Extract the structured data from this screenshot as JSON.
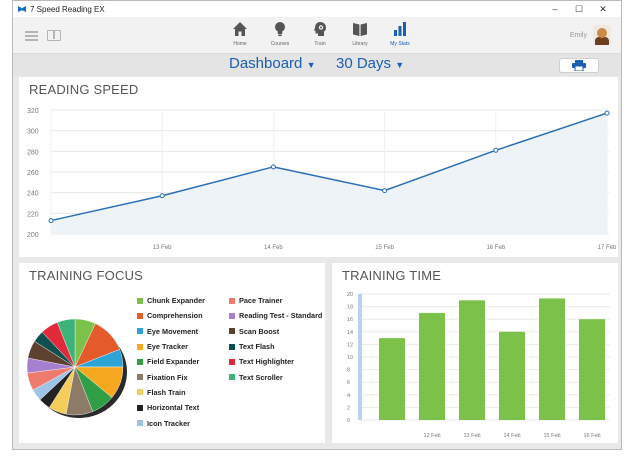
{
  "window": {
    "title": "7 Speed Reading EX",
    "controls": [
      "–",
      "☐",
      "✕"
    ]
  },
  "nav": {
    "items": [
      {
        "label": "Home",
        "icon": "home-icon",
        "active": false
      },
      {
        "label": "Courses",
        "icon": "lightbulb-icon",
        "active": false
      },
      {
        "label": "Train",
        "icon": "brain-icon",
        "active": false
      },
      {
        "label": "Library",
        "icon": "book-icon",
        "active": false
      },
      {
        "label": "My Stats",
        "icon": "bar-chart-icon",
        "active": true
      }
    ]
  },
  "user": {
    "name": "Emily"
  },
  "filters": {
    "view": "Dashboard",
    "period": "30 Days"
  },
  "colors": {
    "accent": "#1a5fb4",
    "line": "#2a6eb5",
    "bar": "#7cc24a"
  },
  "reading_speed": {
    "title": "READING SPEED",
    "chart_data": {
      "type": "line",
      "x": [
        "",
        "13 Feb",
        "14 Feb",
        "15 Feb",
        "16 Feb",
        "17 Feb"
      ],
      "series": [
        {
          "values": [
            213,
            237,
            265,
            242,
            281,
            317
          ]
        }
      ],
      "ylim": [
        200,
        320
      ],
      "yticks": [
        200,
        220,
        240,
        260,
        280,
        300,
        320
      ],
      "xticks": [
        "13 Feb",
        "14 Feb",
        "15 Feb",
        "16 Feb",
        "17 Feb"
      ],
      "grid": true
    }
  },
  "training_focus": {
    "title": "TRAINING FOCUS",
    "chart_data": {
      "type": "pie",
      "slices": [
        {
          "label": "Chunk Expander",
          "value": 7,
          "color": "#7cc24a"
        },
        {
          "label": "Comprehension",
          "value": 12,
          "color": "#e55a2b"
        },
        {
          "label": "Eye Movement",
          "value": 6,
          "color": "#2ea3d5"
        },
        {
          "label": "Eye Tracker",
          "value": 11,
          "color": "#f6a821"
        },
        {
          "label": "Field Expander",
          "value": 8,
          "color": "#2f9e44"
        },
        {
          "label": "Fixation Fix",
          "value": 9,
          "color": "#8e7b67"
        },
        {
          "label": "Flash Train",
          "value": 6,
          "color": "#f5cd5c"
        },
        {
          "label": "Horizontal Text",
          "value": 4,
          "color": "#222222"
        },
        {
          "label": "Icon Tracker",
          "value": 4,
          "color": "#9dc3e6"
        },
        {
          "label": "Pace Trainer",
          "value": 6,
          "color": "#ef7b6f"
        },
        {
          "label": "Reading Test - Standard",
          "value": 5,
          "color": "#a77fd1"
        },
        {
          "label": "Scan Boost",
          "value": 6,
          "color": "#5e4030"
        },
        {
          "label": "Text Flash",
          "value": 4,
          "color": "#0f4f4f"
        },
        {
          "label": "Text Highlighter",
          "value": 6,
          "color": "#e02a3a"
        },
        {
          "label": "Text Scroller",
          "value": 6,
          "color": "#3db37a"
        }
      ]
    }
  },
  "training_time": {
    "title": "TRAINING TIME",
    "chart_data": {
      "type": "bar",
      "categories": [
        "",
        "12 Feb",
        "13 Feb",
        "14 Feb",
        "15 Feb",
        "16 Feb"
      ],
      "values": [
        13,
        17,
        19,
        14,
        19.3,
        16
      ],
      "ylim": [
        0,
        20
      ],
      "yticks": [
        0,
        2,
        4,
        6,
        8,
        10,
        12,
        14,
        16,
        18,
        20
      ],
      "grid": true
    }
  }
}
